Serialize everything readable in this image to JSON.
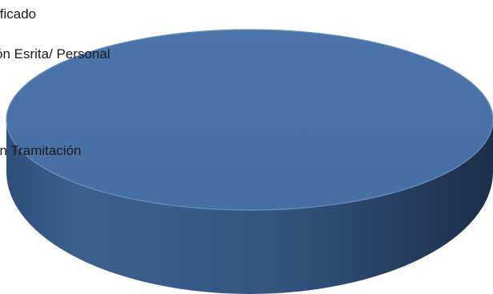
{
  "chart_data": {
    "type": "pie",
    "style": "3d",
    "title": "",
    "categories": [
      "…ificado",
      "…ón Esrita/ Personal",
      "…en Tramitación"
    ],
    "values": [
      0,
      0,
      100
    ],
    "colors": {
      "slice_top": "#4a73a8",
      "slice_side": "#2e4d78",
      "slice_side_dark": "#1c2f4a",
      "slice_edge": "#6a91c2",
      "label_text": "#1a1a1a"
    },
    "labels_truncated_at_left_edge": true
  }
}
